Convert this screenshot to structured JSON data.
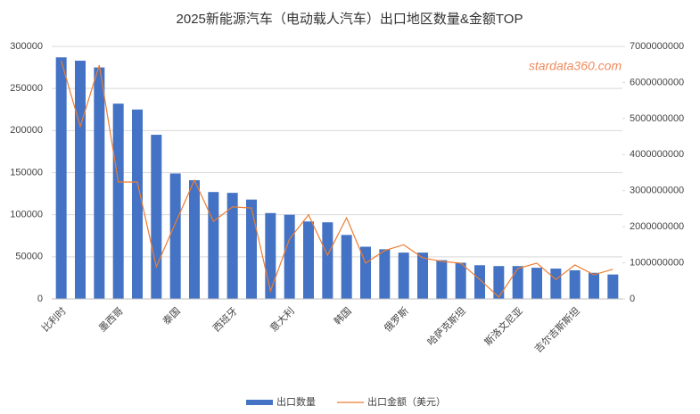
{
  "chart_data": {
    "type": "bar_line",
    "title": "2025新能源汽车（电动载人汽车）出口地区数量&金额TOP",
    "watermark": "stardata360.com",
    "categories": [
      "比利时",
      null,
      null,
      "墨西哥",
      null,
      null,
      "泰国",
      null,
      null,
      "西班牙",
      null,
      null,
      "意大利",
      null,
      null,
      "韩国",
      null,
      null,
      "俄罗斯",
      null,
      null,
      "哈萨克斯坦",
      null,
      null,
      "斯洛文尼亚",
      null,
      null,
      "吉尔吉斯斯坦",
      null,
      null
    ],
    "series": [
      {
        "name": "出口数量",
        "type": "bar",
        "color": "#4472c4",
        "values": [
          287000,
          283000,
          275000,
          232000,
          225000,
          195000,
          149000,
          141000,
          127000,
          126000,
          118000,
          102000,
          100000,
          92000,
          91000,
          76000,
          62000,
          59000,
          55000,
          55000,
          46000,
          43000,
          40000,
          39000,
          39000,
          37000,
          36000,
          34000,
          31000,
          29000
        ]
      },
      {
        "name": "出口金额（美元）",
        "type": "line",
        "axis": "y2",
        "color": "#ed7d31",
        "values": [
          6600000000,
          4780000000,
          6480000000,
          3240000000,
          3240000000,
          890000000,
          2100000000,
          3290000000,
          2150000000,
          2550000000,
          2520000000,
          220000000,
          1660000000,
          2330000000,
          1210000000,
          2250000000,
          990000000,
          1340000000,
          1500000000,
          1140000000,
          1040000000,
          990000000,
          540000000,
          50000000,
          840000000,
          990000000,
          540000000,
          940000000,
          670000000,
          820000000
        ]
      }
    ],
    "ylim": [
      0,
      300000
    ],
    "yticks": [
      0,
      50000,
      100000,
      150000,
      200000,
      250000,
      300000
    ],
    "y2lim": [
      0,
      7000000000
    ],
    "y2ticks": [
      0,
      1000000000,
      2000000000,
      3000000000,
      4000000000,
      5000000000,
      6000000000,
      7000000000
    ],
    "grid": true,
    "legend": "bottom"
  }
}
